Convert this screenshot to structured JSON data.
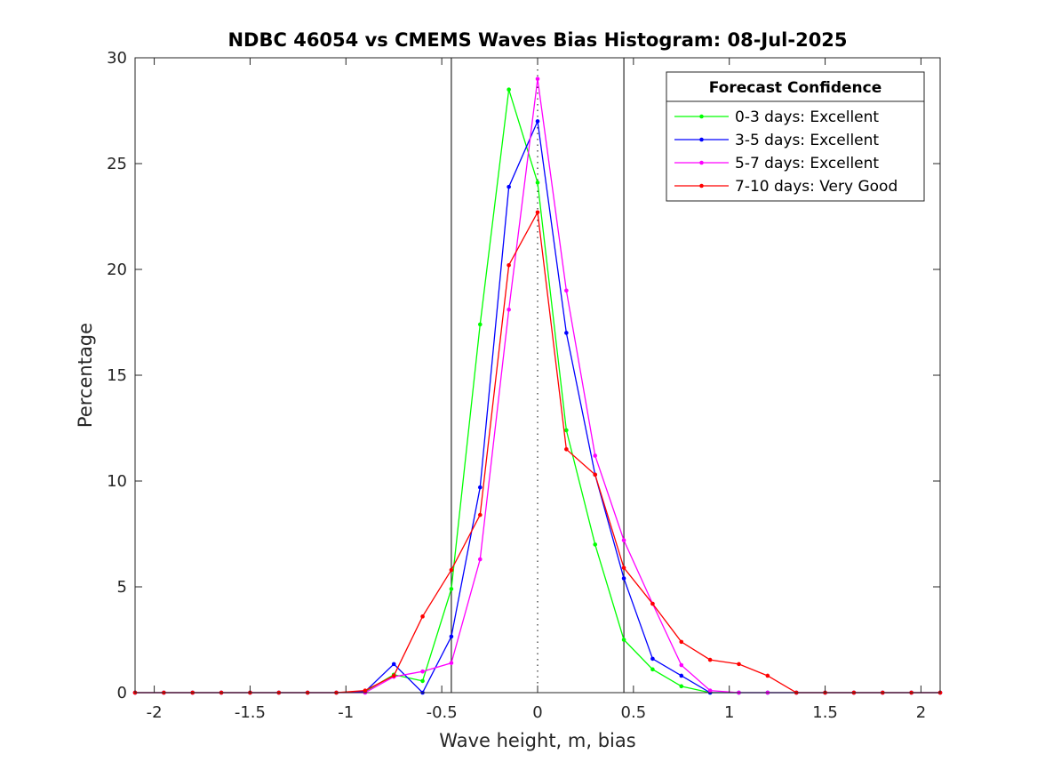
{
  "chart_data": {
    "type": "line",
    "title": "NDBC 46054 vs CMEMS Waves Bias Histogram: 08-Jul-2025",
    "xlabel": "Wave height, m, bias",
    "ylabel": "Percentage",
    "xlim": [
      -2.1,
      2.1
    ],
    "ylim": [
      0,
      30
    ],
    "xticks": [
      -2,
      -1.5,
      -1,
      -0.5,
      0,
      0.5,
      1,
      1.5,
      2
    ],
    "xtick_labels": [
      "-2",
      "-1.5",
      "-1",
      "-0.5",
      "0",
      "0.5",
      "1",
      "1.5",
      "2"
    ],
    "yticks": [
      0,
      5,
      10,
      15,
      20,
      25,
      30
    ],
    "ytick_labels": [
      "0",
      "5",
      "10",
      "15",
      "20",
      "25",
      "30"
    ],
    "grid": false,
    "reference_lines": {
      "solid_x": [
        -0.45,
        0.45
      ],
      "dotted_x": [
        0
      ]
    },
    "x": [
      -2.1,
      -1.95,
      -1.8,
      -1.65,
      -1.5,
      -1.35,
      -1.2,
      -1.05,
      -0.9,
      -0.75,
      -0.6,
      -0.45,
      -0.3,
      -0.15,
      0,
      0.15,
      0.3,
      0.45,
      0.6,
      0.75,
      0.9,
      1.05,
      1.2,
      1.35,
      1.5,
      1.65,
      1.8,
      1.95,
      2.1
    ],
    "series": [
      {
        "name": "0-3 days: Excellent",
        "color": "#00ff00",
        "values": [
          0,
          0,
          0,
          0,
          0,
          0,
          0,
          0,
          0.05,
          0.85,
          0.55,
          4.9,
          17.4,
          28.5,
          24.1,
          12.4,
          7.0,
          2.5,
          1.1,
          0.3,
          0,
          0,
          0,
          0,
          0,
          0,
          0,
          0,
          0
        ]
      },
      {
        "name": "3-5 days: Excellent",
        "color": "#0000ff",
        "values": [
          0,
          0,
          0,
          0,
          0,
          0,
          0,
          0,
          0.05,
          1.35,
          0,
          2.65,
          9.7,
          23.9,
          27.0,
          17.0,
          10.3,
          5.4,
          1.6,
          0.8,
          0,
          0,
          0,
          0,
          0,
          0,
          0,
          0,
          0
        ]
      },
      {
        "name": "5-7 days: Excellent",
        "color": "#ff00ff",
        "values": [
          0,
          0,
          0,
          0,
          0,
          0,
          0,
          0,
          0,
          0.75,
          1.0,
          1.4,
          6.3,
          18.1,
          29.0,
          19.0,
          11.2,
          7.2,
          4.2,
          1.3,
          0.1,
          0,
          0,
          0,
          0,
          0,
          0,
          0,
          0
        ]
      },
      {
        "name": "7-10 days: Very Good",
        "color": "#ff0000",
        "values": [
          0,
          0,
          0,
          0,
          0,
          0,
          0,
          0,
          0.1,
          0.8,
          3.6,
          5.8,
          8.4,
          20.2,
          22.7,
          11.5,
          10.3,
          5.9,
          4.2,
          2.4,
          1.55,
          1.35,
          0.8,
          0,
          0,
          0,
          0,
          0,
          0
        ]
      }
    ],
    "legend": {
      "title": "Forecast Confidence",
      "placement": "top-right"
    }
  }
}
